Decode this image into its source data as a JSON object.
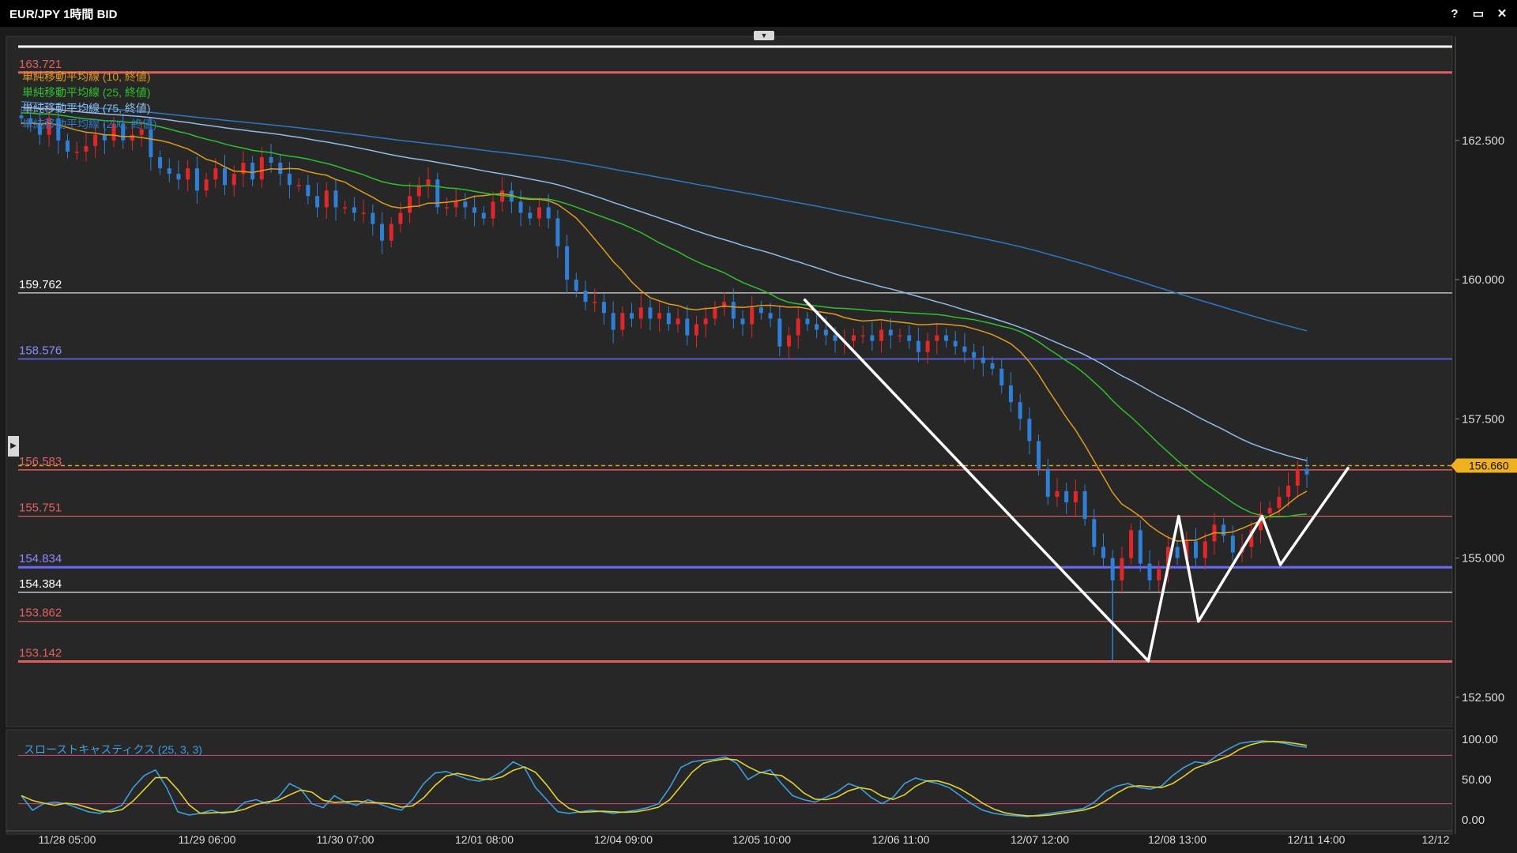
{
  "window": {
    "title": "EUR/JPY 1時間 BID",
    "controls": [
      "?",
      "▭",
      "✕"
    ]
  },
  "chart_data": {
    "type": "candlestick",
    "symbol": "EUR/JPY",
    "yticks": [
      "162.500",
      "160.000",
      "157.500",
      "155.000",
      "152.500"
    ],
    "ylim": [
      152.0,
      164.2
    ],
    "xticks": [
      "11/28 05:00",
      "11/29 06:00",
      "11/30 07:00",
      "12/01 08:00",
      "12/04 09:00",
      "12/05 10:00",
      "12/06 11:00",
      "12/07 12:00",
      "12/08 13:00",
      "12/11 14:00",
      "12/12"
    ],
    "current_price": "156.660",
    "legend": [
      {
        "label": "単純移動平均線 (10, 終値)",
        "color": "#e09a1e"
      },
      {
        "label": "単純移動平均線 (25, 終値)",
        "color": "#2fc02f"
      },
      {
        "label": "単純移動平均線 (75, 終値)",
        "color": "#8fbbe6"
      },
      {
        "label": "単純移動平均線 (200, 終値)",
        "color": "#2a78c8"
      }
    ],
    "levels": [
      {
        "price": 163.721,
        "label": "163.721",
        "color": "#e06060",
        "label_color": "#e06060",
        "width": 3
      },
      {
        "price": 159.762,
        "label": "159.762",
        "color": "#bdbdbd",
        "label_color": "#ffffff",
        "width": 1.5
      },
      {
        "price": 158.576,
        "label": "158.576",
        "color": "#6a6aff",
        "label_color": "#8a8aff",
        "width": 1.5
      },
      {
        "price": 156.583,
        "label": "156.583",
        "color": "#e06060",
        "label_color": "#e06060",
        "width": 1.5
      },
      {
        "price": 155.751,
        "label": "155.751",
        "color": "#e06060",
        "label_color": "#e06060",
        "width": 1.2
      },
      {
        "price": 154.834,
        "label": "154.834",
        "color": "#6a6aff",
        "label_color": "#8a8aff",
        "width": 3
      },
      {
        "price": 154.384,
        "label": "154.384",
        "color": "#bdbdbd",
        "label_color": "#ffffff",
        "width": 1.5
      },
      {
        "price": 153.862,
        "label": "153.862",
        "color": "#e06060",
        "label_color": "#e06060",
        "width": 1.2
      },
      {
        "price": 153.142,
        "label": "153.142",
        "color": "#e06060",
        "label_color": "#e06060",
        "width": 3
      }
    ],
    "closes": [
      162.9,
      162.8,
      162.6,
      162.9,
      162.5,
      162.3,
      162.3,
      162.4,
      162.6,
      162.5,
      162.8,
      162.5,
      162.6,
      162.7,
      162.2,
      162.0,
      161.9,
      161.8,
      162.0,
      161.6,
      161.8,
      162.0,
      161.7,
      161.9,
      162.1,
      161.8,
      162.2,
      162.1,
      161.9,
      161.7,
      161.7,
      161.5,
      161.3,
      161.6,
      161.3,
      161.3,
      161.2,
      161.2,
      161.0,
      160.7,
      161.0,
      161.2,
      161.5,
      161.7,
      161.8,
      161.3,
      161.3,
      161.4,
      161.3,
      161.2,
      161.1,
      161.4,
      161.6,
      161.4,
      161.2,
      161.1,
      161.3,
      161.1,
      160.6,
      160.0,
      159.8,
      159.6,
      159.6,
      159.4,
      159.1,
      159.4,
      159.3,
      159.5,
      159.3,
      159.4,
      159.2,
      159.3,
      159.0,
      159.2,
      159.3,
      159.5,
      159.6,
      159.3,
      159.2,
      159.5,
      159.4,
      159.3,
      158.8,
      159.0,
      159.3,
      159.2,
      159.1,
      159.0,
      158.9,
      158.9,
      159.0,
      159.0,
      158.9,
      159.1,
      159.0,
      159.0,
      158.9,
      158.7,
      158.9,
      159.0,
      158.9,
      158.8,
      158.7,
      158.6,
      158.5,
      158.4,
      158.1,
      157.8,
      157.5,
      157.1,
      156.6,
      156.1,
      156.2,
      156.0,
      156.2,
      155.7,
      155.2,
      155.0,
      154.6,
      155.0,
      155.5,
      154.9,
      154.6,
      154.8,
      155.2,
      155.0,
      155.3,
      155.0,
      155.3,
      155.6,
      155.4,
      155.1,
      155.2,
      155.5,
      155.8,
      155.9,
      156.1,
      156.3,
      156.6,
      156.5
    ],
    "ma10_end": 156.2,
    "ma25_end": 155.79,
    "ma75_end": 156.75,
    "ma200_end": 159.08,
    "pattern_points": [
      [
        159.65,
        0.53
      ],
      [
        153.15,
        0.757
      ],
      [
        155.75,
        0.777
      ],
      [
        153.86,
        0.79
      ],
      [
        155.75,
        0.832
      ],
      [
        154.88,
        0.844
      ],
      [
        156.63,
        0.889
      ]
    ],
    "stochastic": {
      "label": "スローストキャスティクス (25, 3, 3)",
      "yticks": [
        "100.00",
        "50.00",
        "0.00"
      ],
      "upper_line": 80,
      "lower_line": 20,
      "k_color": "#3aa0e0",
      "d_color": "#e0d030",
      "k": [
        30,
        12,
        20,
        22,
        20,
        15,
        10,
        8,
        12,
        18,
        40,
        55,
        62,
        40,
        10,
        6,
        8,
        12,
        8,
        10,
        22,
        25,
        20,
        28,
        45,
        38,
        20,
        15,
        30,
        22,
        18,
        25,
        20,
        15,
        12,
        25,
        45,
        58,
        60,
        55,
        50,
        48,
        52,
        60,
        72,
        65,
        40,
        25,
        10,
        8,
        10,
        12,
        10,
        8,
        10,
        12,
        15,
        20,
        40,
        65,
        72,
        74,
        75,
        78,
        70,
        50,
        58,
        62,
        45,
        30,
        25,
        22,
        28,
        35,
        45,
        40,
        28,
        20,
        28,
        45,
        52,
        48,
        45,
        40,
        30,
        20,
        12,
        8,
        6,
        5,
        4,
        6,
        8,
        10,
        12,
        14,
        22,
        35,
        42,
        45,
        40,
        38,
        42,
        55,
        65,
        72,
        70,
        80,
        88,
        95,
        97,
        98,
        97,
        95,
        92,
        90
      ]
    }
  }
}
